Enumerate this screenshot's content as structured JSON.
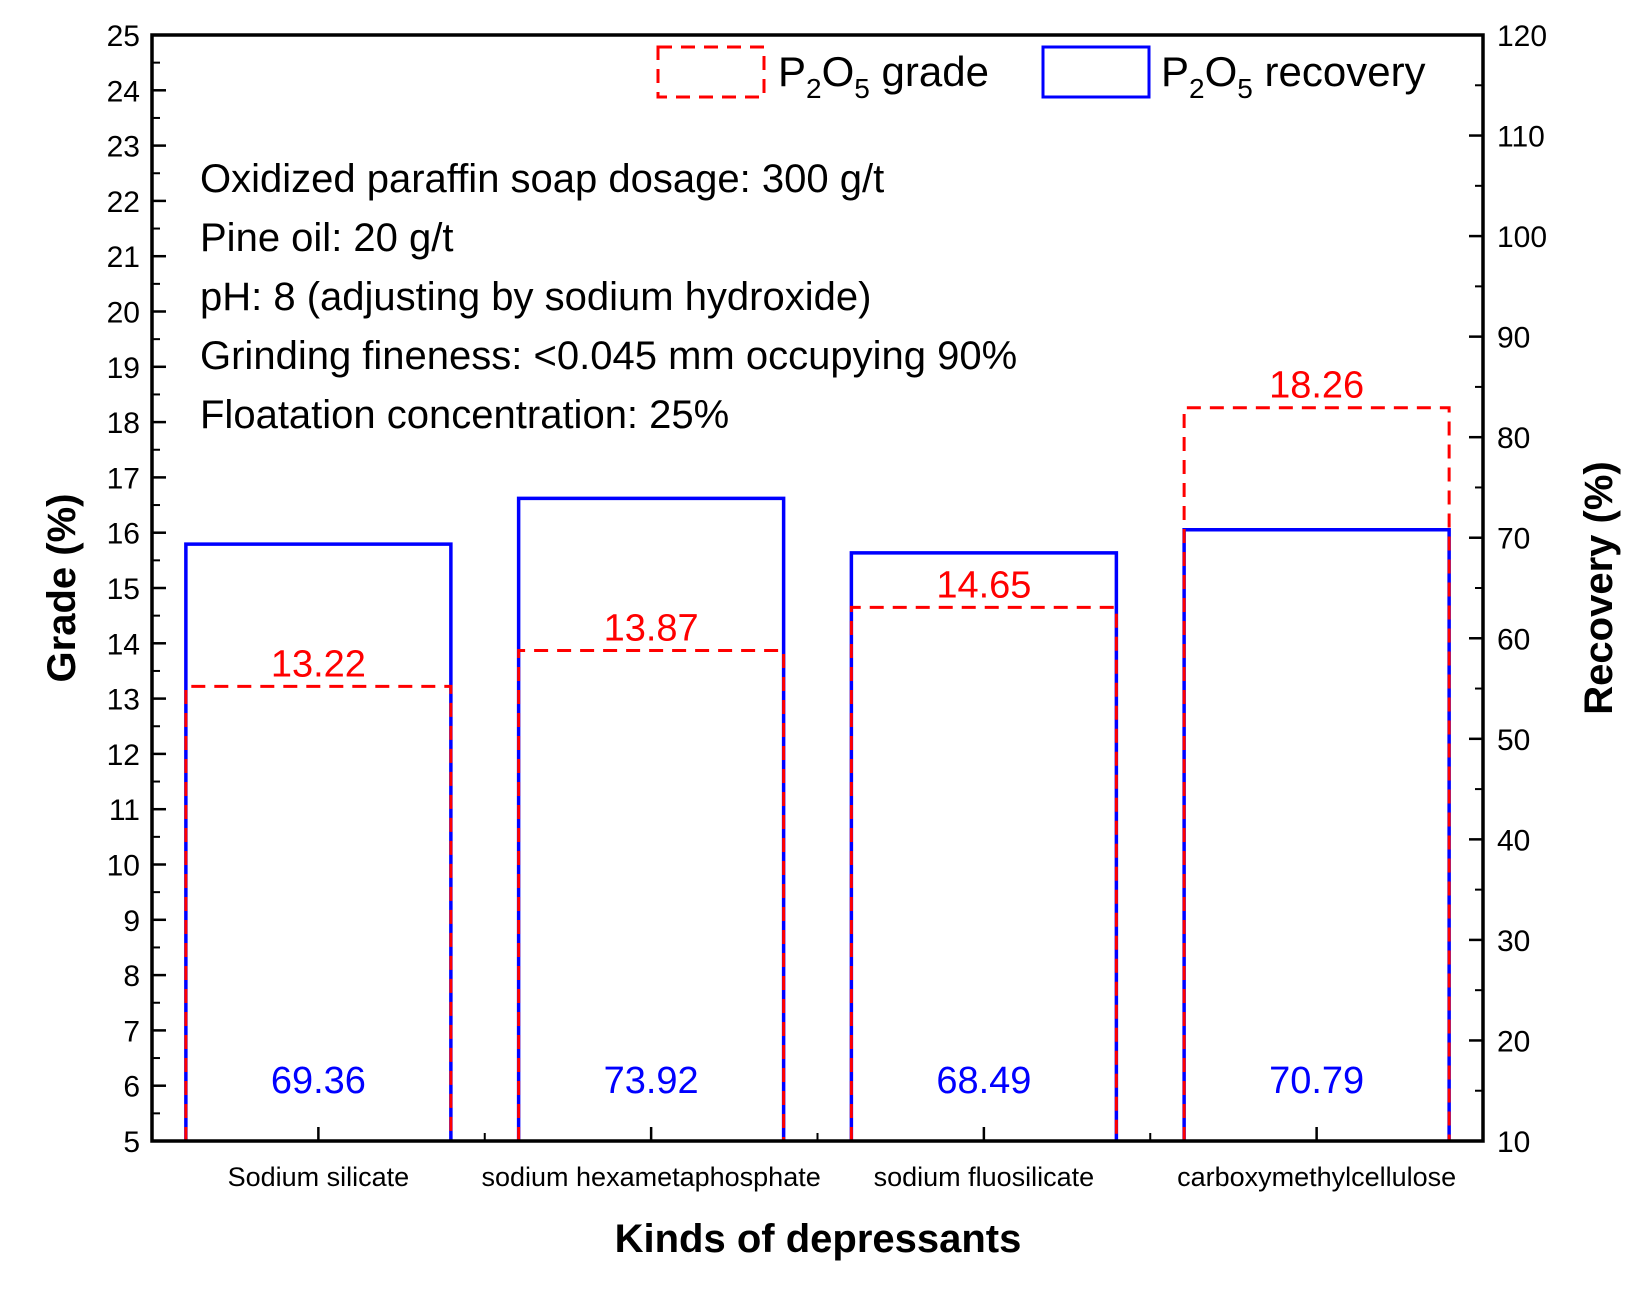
{
  "chart_data": {
    "type": "bar",
    "categories": [
      "Sodium silicate",
      "sodium hexametaphosphate",
      "sodium fluosilicate",
      "carboxymethylcellulose"
    ],
    "series": [
      {
        "name": "P2O5 grade",
        "axis": "left",
        "style": "dashed-outline",
        "color": "#ff0000",
        "values": [
          13.22,
          13.87,
          14.65,
          18.26
        ],
        "labels": [
          "13.22",
          "13.87",
          "14.65",
          "18.26"
        ]
      },
      {
        "name": "P2O5 recovery",
        "axis": "right",
        "style": "solid-outline",
        "color": "#0000ff",
        "values": [
          69.36,
          73.92,
          68.49,
          70.79
        ],
        "labels": [
          "69.36",
          "73.92",
          "68.49",
          "70.79"
        ]
      }
    ],
    "xlabel": "Kinds of depressants",
    "ylabel": "Grade (%)",
    "y2label": "Recovery (%)",
    "ylim": [
      5,
      25
    ],
    "y2lim": [
      10,
      120
    ],
    "yticks": [
      5,
      6,
      7,
      8,
      9,
      10,
      11,
      12,
      13,
      14,
      15,
      16,
      17,
      18,
      19,
      20,
      21,
      22,
      23,
      24,
      25
    ],
    "y2ticks": [
      10,
      20,
      30,
      40,
      50,
      60,
      70,
      80,
      90,
      100,
      110,
      120
    ],
    "grid": false,
    "legend": {
      "placement": "top-right",
      "items": [
        {
          "base": "P",
          "sub1": "2",
          "mid": "O",
          "sub2": "5",
          "rest": " grade",
          "style": "dashed",
          "color": "#ff0000"
        },
        {
          "base": "P",
          "sub1": "2",
          "mid": "O",
          "sub2": "5",
          "rest": " recovery",
          "style": "solid",
          "color": "#0000ff"
        }
      ]
    },
    "annotations": [
      "Oxidized paraffin soap dosage: 300 g/t",
      "Pine oil: 20 g/t",
      "pH: 8 (adjusting by sodium hydroxide)",
      "Grinding fineness: <0.045 mm occupying 90%",
      "Floatation concentration: 25%"
    ]
  }
}
